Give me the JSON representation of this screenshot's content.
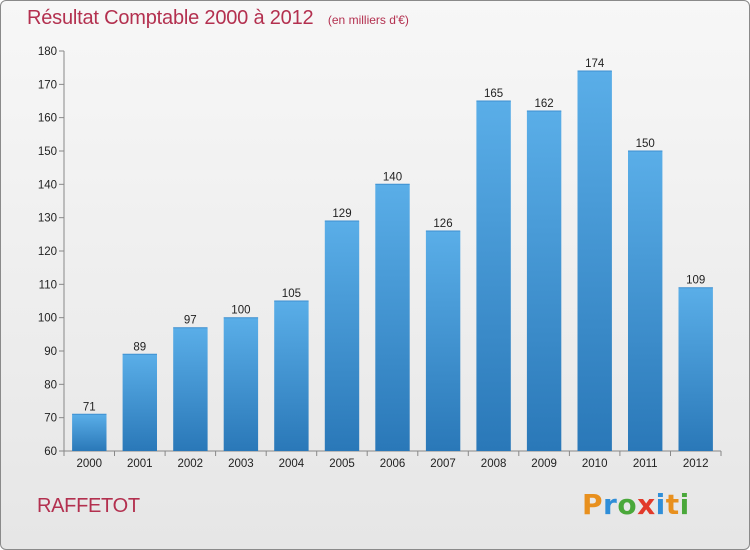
{
  "title": "Résultat Comptable 2000 à 2012",
  "subtitle": "(en milliers d'€)",
  "commune": "RAFFETOT",
  "logo": {
    "letters": [
      "P",
      "r",
      "o",
      "x",
      "i",
      "t",
      "i"
    ],
    "colors": [
      "#e8901e",
      "#2f8ed8",
      "#4aa83a",
      "#e23a2a",
      "#2f8ed8",
      "#e8901e",
      "#4aa83a"
    ]
  },
  "colors": {
    "bar_top": "#5aaee8",
    "bar_bottom": "#2a78b8",
    "title": "#b3304f"
  },
  "chart_data": {
    "type": "bar",
    "categories": [
      "2000",
      "2001",
      "2002",
      "2003",
      "2004",
      "2005",
      "2006",
      "2007",
      "2008",
      "2009",
      "2010",
      "2011",
      "2012"
    ],
    "values": [
      71,
      89,
      97,
      100,
      105,
      129,
      140,
      126,
      165,
      162,
      174,
      150,
      109
    ],
    "title": "Résultat Comptable 2000 à 2012",
    "subtitle": "(en milliers d'€)",
    "xlabel": "",
    "ylabel": "",
    "ylim": [
      60,
      180
    ],
    "yticks": [
      60,
      70,
      80,
      90,
      100,
      110,
      120,
      130,
      140,
      150,
      160,
      170,
      180
    ],
    "grid": false,
    "legend": "none"
  }
}
